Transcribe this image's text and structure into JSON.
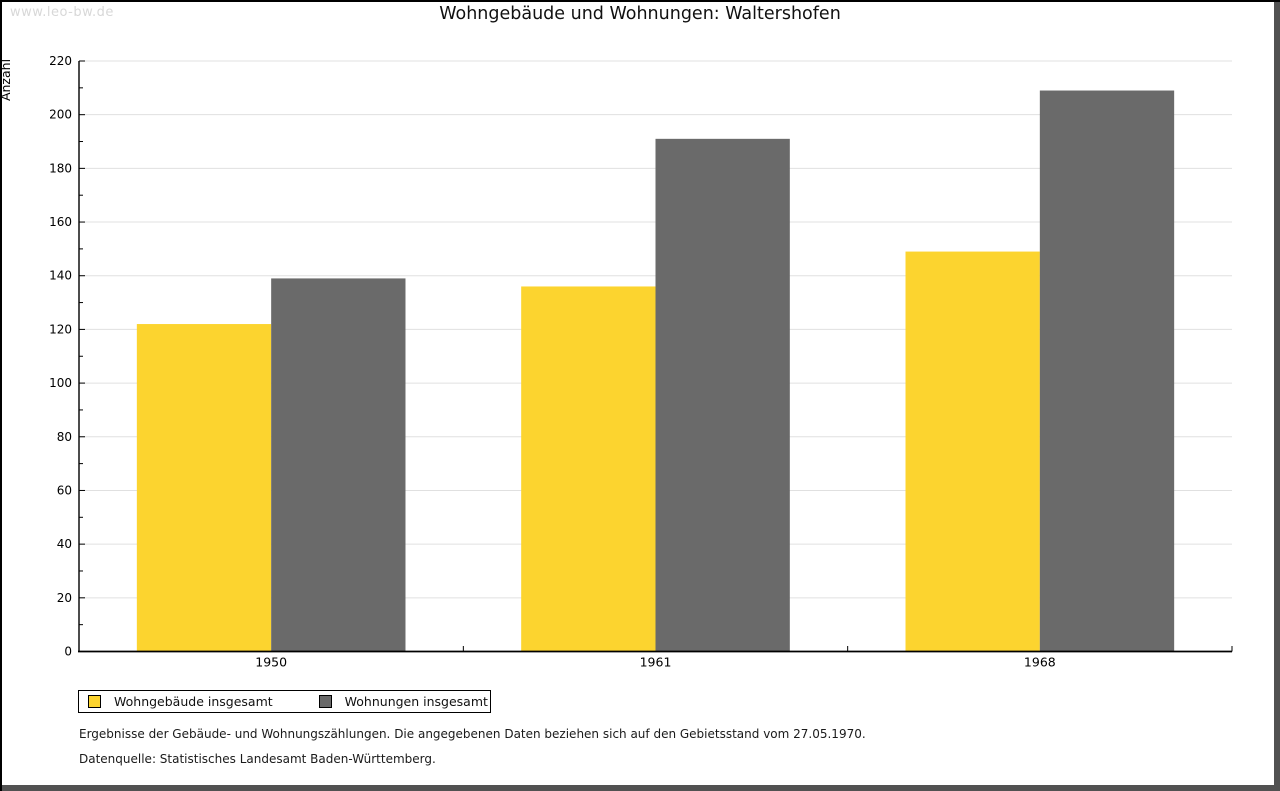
{
  "watermark": "www.leo-bw.de",
  "title": "Wohngebäude und Wohnungen: Waltershofen",
  "chart_data": {
    "type": "bar",
    "title": "Wohngebäude und Wohnungen: Waltershofen",
    "xlabel": "",
    "ylabel": "Anzahl",
    "categories": [
      "1950",
      "1961",
      "1968"
    ],
    "series": [
      {
        "name": "Wohngebäude insgesamt",
        "color": "#fcd42f",
        "values": [
          122,
          136,
          149
        ]
      },
      {
        "name": "Wohnungen insgesamt",
        "color": "#6a6a6a",
        "values": [
          139,
          191,
          209
        ]
      }
    ],
    "ylim": [
      0,
      220
    ],
    "ytick_major": 20,
    "ytick_minor": 10,
    "grid": true,
    "gridline_color": "#e0e0e0",
    "legend_position": "bottom-left"
  },
  "legend": {
    "items": [
      {
        "label": "Wohngebäude insgesamt",
        "color": "#fcd42f"
      },
      {
        "label": "Wohnungen insgesamt",
        "color": "#6a6a6a"
      }
    ]
  },
  "footnotes": {
    "line1": "Ergebnisse der Gebäude- und Wohnungszählungen. Die angegebenen Daten beziehen sich auf den Gebietsstand vom 27.05.1970.",
    "line2": "Datenquelle: Statistisches Landesamt Baden-Württemberg."
  },
  "colors": {
    "frame_dark": "#515151",
    "axis": "#000000",
    "watermark": "#d8d8d8",
    "background": "#ffffff"
  }
}
